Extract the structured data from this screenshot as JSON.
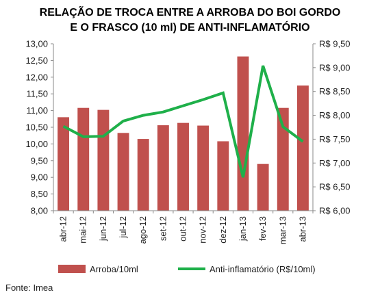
{
  "title_line1": "RELAÇÃO DE TROCA ENTRE A ARROBA DO BOI GORDO",
  "title_line2": "E O FRASCO (10 ml) DE ANTI-INFLAMATÓRIO",
  "source": "Fonte: Imea",
  "chart_data": {
    "type": "bar",
    "categories": [
      "abr-12",
      "mai-12",
      "jun-12",
      "jul-12",
      "ago-12",
      "set-12",
      "out-12",
      "nov-12",
      "dez-12",
      "jan-13",
      "fev-13",
      "mar-13",
      "abr-13"
    ],
    "series": [
      {
        "name": "Arroba/10ml",
        "type": "bar",
        "axis": "left",
        "color": "#c0504d",
        "values": [
          10.8,
          11.08,
          11.02,
          10.33,
          10.15,
          10.56,
          10.63,
          10.55,
          10.08,
          12.62,
          9.4,
          11.08,
          11.75
        ]
      },
      {
        "name": "Anti-inflamatório (R$/10ml)",
        "type": "line",
        "axis": "right",
        "color": "#1fb04a",
        "values": [
          7.77,
          7.55,
          7.56,
          7.88,
          8.0,
          8.07,
          8.2,
          8.33,
          8.47,
          6.7,
          9.04,
          7.76,
          7.45
        ]
      }
    ],
    "y_left": {
      "min": 8.0,
      "max": 13.0,
      "step": 0.5,
      "tick_labels": [
        "8,00",
        "8,50",
        "9,00",
        "9,50",
        "10,00",
        "10,50",
        "11,00",
        "11,50",
        "12,00",
        "12,50",
        "13,00"
      ]
    },
    "y_right": {
      "min": 6.0,
      "max": 9.5,
      "step": 0.5,
      "tick_labels": [
        "R$ 6,00",
        "R$ 6,50",
        "R$ 7,00",
        "R$ 7,50",
        "R$ 8,00",
        "R$ 8,50",
        "R$ 9,00",
        "R$ 9,50"
      ]
    },
    "grid": false,
    "legend_position": "bottom"
  }
}
